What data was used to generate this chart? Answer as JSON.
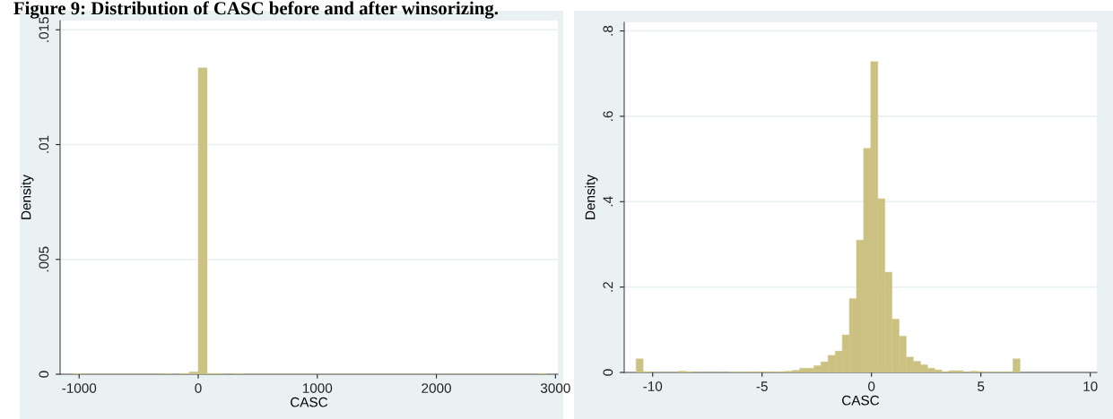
{
  "chart_data": [
    {
      "type": "histogram",
      "title": "Figure 9: Distribution of CASC before and after winsorizing.",
      "xlabel": "CASC",
      "ylabel": "Density",
      "color": "#cbc282",
      "bins": [
        -1050,
        -975,
        -900,
        -825,
        -750,
        -675,
        -600,
        -525,
        -450,
        -375,
        -300,
        -225,
        -150,
        -75,
        0,
        75,
        150,
        225,
        300,
        375,
        450,
        525,
        600,
        675,
        750,
        825,
        900,
        975,
        1050,
        1125,
        1200,
        1275,
        1350,
        1425,
        1500,
        1575,
        1650,
        1725,
        1800,
        1875,
        1950,
        2025,
        2100,
        2175,
        2250,
        2325,
        2400,
        2475,
        2550,
        2625,
        2700,
        2775,
        2850,
        2925
      ],
      "values": [
        3e-05,
        0,
        0,
        0,
        0,
        0,
        0,
        0,
        0,
        0,
        3e-05,
        0,
        3e-05,
        0.0001,
        0.01334,
        3e-05,
        3e-05,
        0,
        3e-05,
        0,
        0,
        0,
        0,
        0,
        0,
        0,
        0,
        0,
        0,
        0,
        0,
        0,
        0,
        0,
        0,
        0,
        0,
        0,
        0,
        0,
        0,
        0,
        0,
        0,
        0,
        0,
        0,
        0,
        0,
        0,
        0,
        0,
        3e-05
      ],
      "xlim": [
        -1160,
        3020
      ],
      "xticks": [
        -1000,
        0,
        1000,
        2000,
        3000
      ],
      "ylim": [
        0,
        0.0154
      ],
      "yticks": [
        0,
        {
          "value": 0.005,
          "label": ".005"
        },
        {
          "value": 0.01,
          "label": ".01"
        },
        {
          "value": 0.015,
          "label": ".015"
        }
      ],
      "grid": "y"
    },
    {
      "type": "histogram",
      "xlabel": "CASC",
      "ylabel": "Density",
      "color": "#cbc282",
      "bins": [
        -10.76,
        -10.435,
        -10.11,
        -9.785,
        -9.46,
        -9.135,
        -8.81,
        -8.485,
        -8.16,
        -7.835,
        -7.51,
        -7.185,
        -6.86,
        -6.535,
        -6.21,
        -5.885,
        -5.56,
        -5.235,
        -4.91,
        -4.585,
        -4.26,
        -3.935,
        -3.61,
        -3.285,
        -2.96,
        -2.635,
        -2.31,
        -1.985,
        -1.66,
        -1.335,
        -1.01,
        -0.685,
        -0.36,
        -0.035,
        0.29,
        0.615,
        0.94,
        1.265,
        1.59,
        1.915,
        2.24,
        2.565,
        2.89,
        3.215,
        3.54,
        3.865,
        4.19,
        4.515,
        4.84,
        5.165,
        5.49,
        5.815,
        6.14,
        6.465,
        6.79
      ],
      "values": [
        0.032,
        0.002,
        0,
        0,
        0,
        0,
        0.003,
        0.002,
        0,
        0,
        0,
        0,
        0,
        0.001,
        0.001,
        0.001,
        0.001,
        0.002,
        0.002,
        0.001,
        0.002,
        0.003,
        0.005,
        0.01,
        0.01,
        0.016,
        0.025,
        0.04,
        0.05,
        0.088,
        0.173,
        0.31,
        0.525,
        0.728,
        0.407,
        0.235,
        0.125,
        0.085,
        0.036,
        0.026,
        0.018,
        0.01,
        0.006,
        0.002,
        0.004,
        0.004,
        0.001,
        0.003,
        0.002,
        0.001,
        0.001,
        0.001,
        0.001,
        0.032
      ],
      "xlim": [
        -11.3,
        10.3
      ],
      "xticks": [
        -10,
        -5,
        0,
        5,
        10
      ],
      "ylim": [
        0,
        0.82
      ],
      "yticks": [
        0,
        {
          "value": 0.2,
          "label": ".2"
        },
        {
          "value": 0.4,
          "label": ".4"
        },
        {
          "value": 0.6,
          "label": ".6"
        },
        {
          "value": 0.8,
          "label": ".8"
        }
      ],
      "grid": "y"
    }
  ]
}
